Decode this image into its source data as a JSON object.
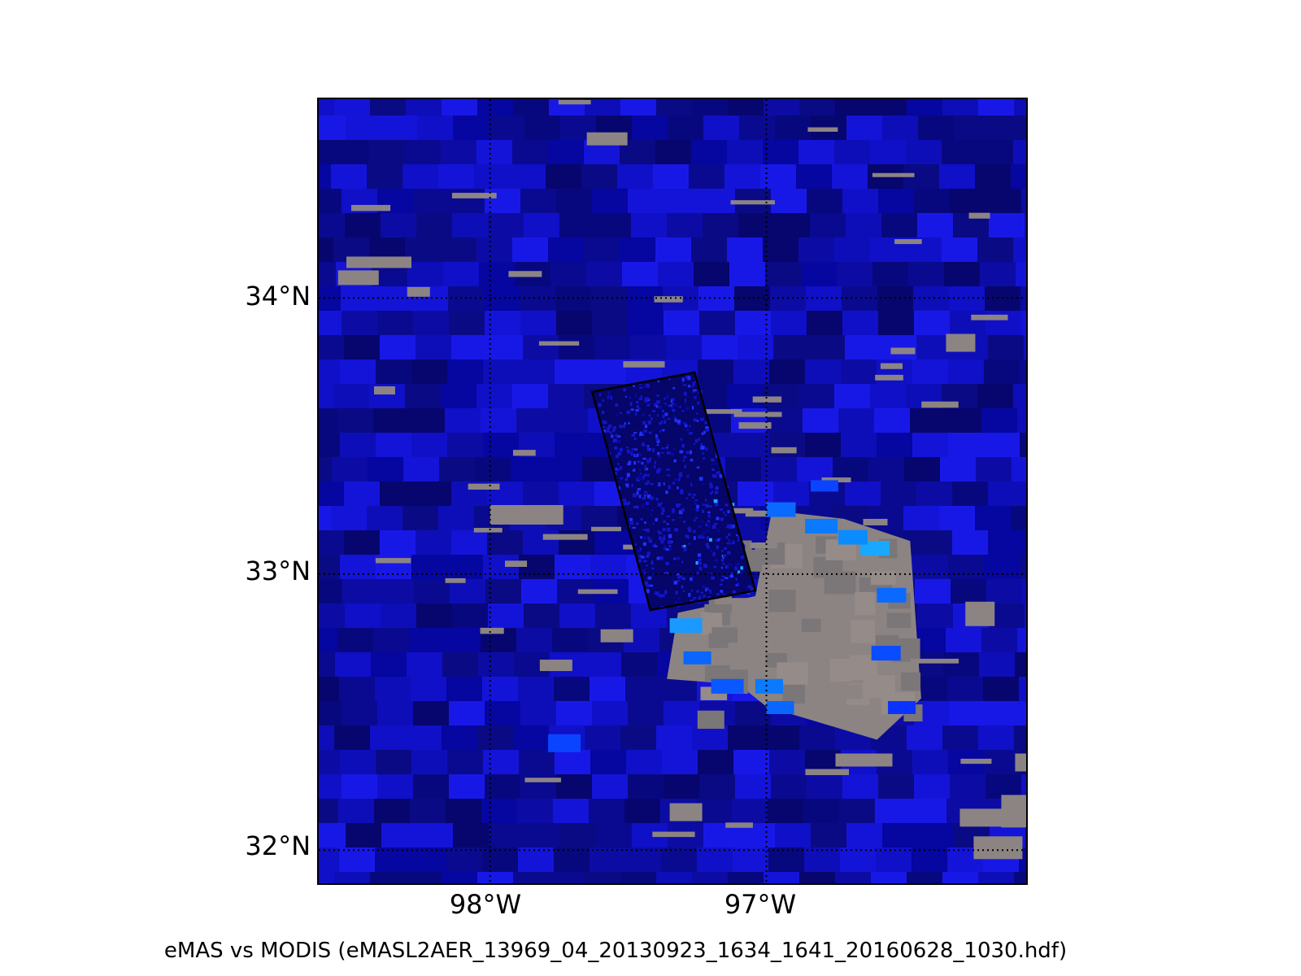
{
  "map": {
    "latitude_labels": [
      "34°N",
      "33°N",
      "32°N"
    ],
    "longitude_labels": [
      "98°W",
      "97°W"
    ],
    "latitude_values": [
      34,
      33,
      32
    ],
    "longitude_values": [
      -98,
      -97
    ],
    "extent": {
      "lon_min": -98.62,
      "lon_max": -96.06,
      "lat_min": 31.88,
      "lat_max": 34.72
    },
    "swath_outline": {
      "corners": [
        [
          -97.63,
          33.66
        ],
        [
          -97.26,
          33.73
        ],
        [
          -97.04,
          32.94
        ],
        [
          -97.42,
          32.87
        ]
      ]
    },
    "colors": {
      "ocean_blue": "#0a0a8a",
      "bright_blue": "#1818e6",
      "cyan": "#1aa8ff",
      "land_gray": "#8c8483",
      "outline": "#000000"
    }
  },
  "caption": "eMAS vs MODIS (eMASL2AER_13969_04_20130923_1634_1641_20160628_1030.hdf)"
}
